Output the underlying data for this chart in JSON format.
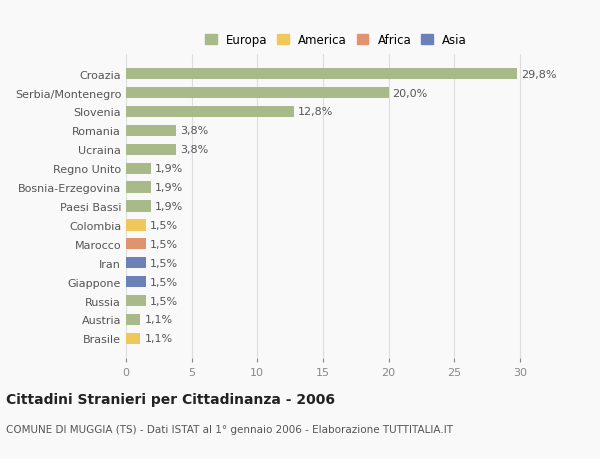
{
  "categories": [
    "Brasile",
    "Austria",
    "Russia",
    "Giappone",
    "Iran",
    "Marocco",
    "Colombia",
    "Paesi Bassi",
    "Bosnia-Erzegovina",
    "Regno Unito",
    "Ucraina",
    "Romania",
    "Slovenia",
    "Serbia/Montenegro",
    "Croazia"
  ],
  "values": [
    1.1,
    1.1,
    1.5,
    1.5,
    1.5,
    1.5,
    1.5,
    1.9,
    1.9,
    1.9,
    3.8,
    3.8,
    12.8,
    20.0,
    29.8
  ],
  "labels": [
    "1,1%",
    "1,1%",
    "1,5%",
    "1,5%",
    "1,5%",
    "1,5%",
    "1,5%",
    "1,9%",
    "1,9%",
    "1,9%",
    "3,8%",
    "3,8%",
    "12,8%",
    "20,0%",
    "29,8%"
  ],
  "colors": [
    "#f0c75a",
    "#a8ba8a",
    "#a8ba8a",
    "#6b82b8",
    "#6b82b8",
    "#e0936e",
    "#f0c75a",
    "#a8ba8a",
    "#a8ba8a",
    "#a8ba8a",
    "#a8ba8a",
    "#a8ba8a",
    "#a8ba8a",
    "#a8ba8a",
    "#a8ba8a"
  ],
  "legend_labels": [
    "Europa",
    "America",
    "Africa",
    "Asia"
  ],
  "legend_colors": [
    "#a8ba8a",
    "#f0c75a",
    "#e0936e",
    "#6b82b8"
  ],
  "xlim": [
    0,
    32
  ],
  "xticks": [
    0,
    5,
    10,
    15,
    20,
    25,
    30
  ],
  "title": "Cittadini Stranieri per Cittadinanza - 2006",
  "subtitle": "COMUNE DI MUGGIA (TS) - Dati ISTAT al 1° gennaio 2006 - Elaborazione TUTTITALIA.IT",
  "background_color": "#f9f9f9",
  "grid_color": "#dddddd",
  "bar_height": 0.6,
  "label_fontsize": 8,
  "ytick_fontsize": 8,
  "xtick_fontsize": 8,
  "title_fontsize": 10,
  "subtitle_fontsize": 7.5
}
